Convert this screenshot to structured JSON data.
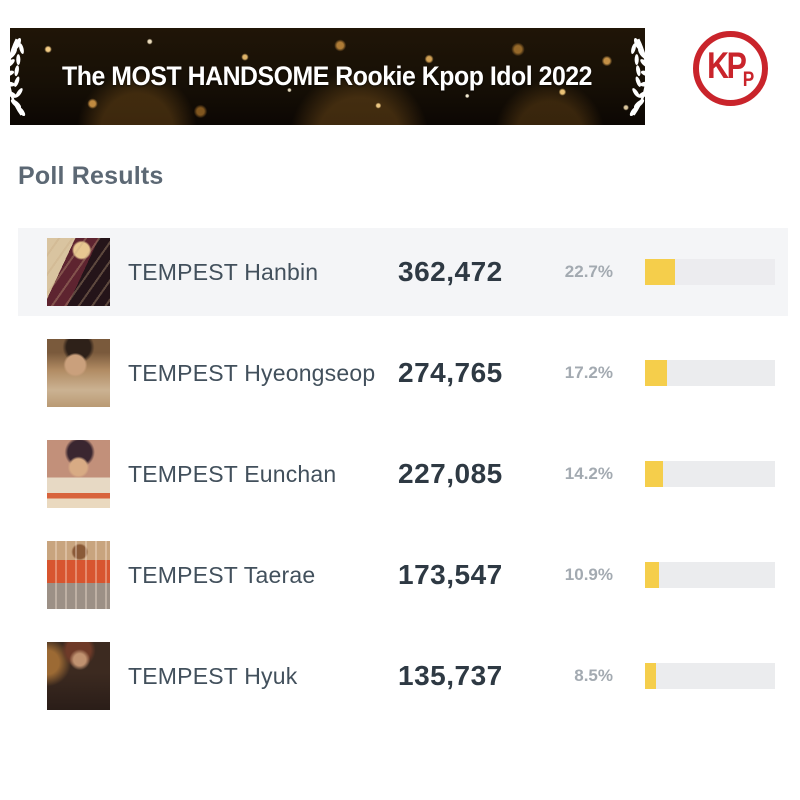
{
  "banner": {
    "title": "The MOST HANDSOME Rookie Kpop Idol 2022"
  },
  "logo": {
    "letter_k": "K",
    "letter_p_large": "P",
    "letter_p_small": "P",
    "color": "#C9242B"
  },
  "page": {
    "heading": "Poll Results"
  },
  "poll": {
    "accent_color": "#F5CE4B",
    "highlight_color": "#F4F5F7",
    "rows": [
      {
        "name": "TEMPEST Hanbin",
        "votes": "362,472",
        "percent": "22.7%",
        "percent_value": 22.7,
        "highlighted": true
      },
      {
        "name": "TEMPEST Hyeongseop",
        "votes": "274,765",
        "percent": "17.2%",
        "percent_value": 17.2,
        "highlighted": false
      },
      {
        "name": "TEMPEST Eunchan",
        "votes": "227,085",
        "percent": "14.2%",
        "percent_value": 14.2,
        "highlighted": false
      },
      {
        "name": "TEMPEST Taerae",
        "votes": "173,547",
        "percent": "10.9%",
        "percent_value": 10.9,
        "highlighted": false
      },
      {
        "name": "TEMPEST Hyuk",
        "votes": "135,737",
        "percent": "8.5%",
        "percent_value": 8.5,
        "highlighted": false
      }
    ]
  }
}
